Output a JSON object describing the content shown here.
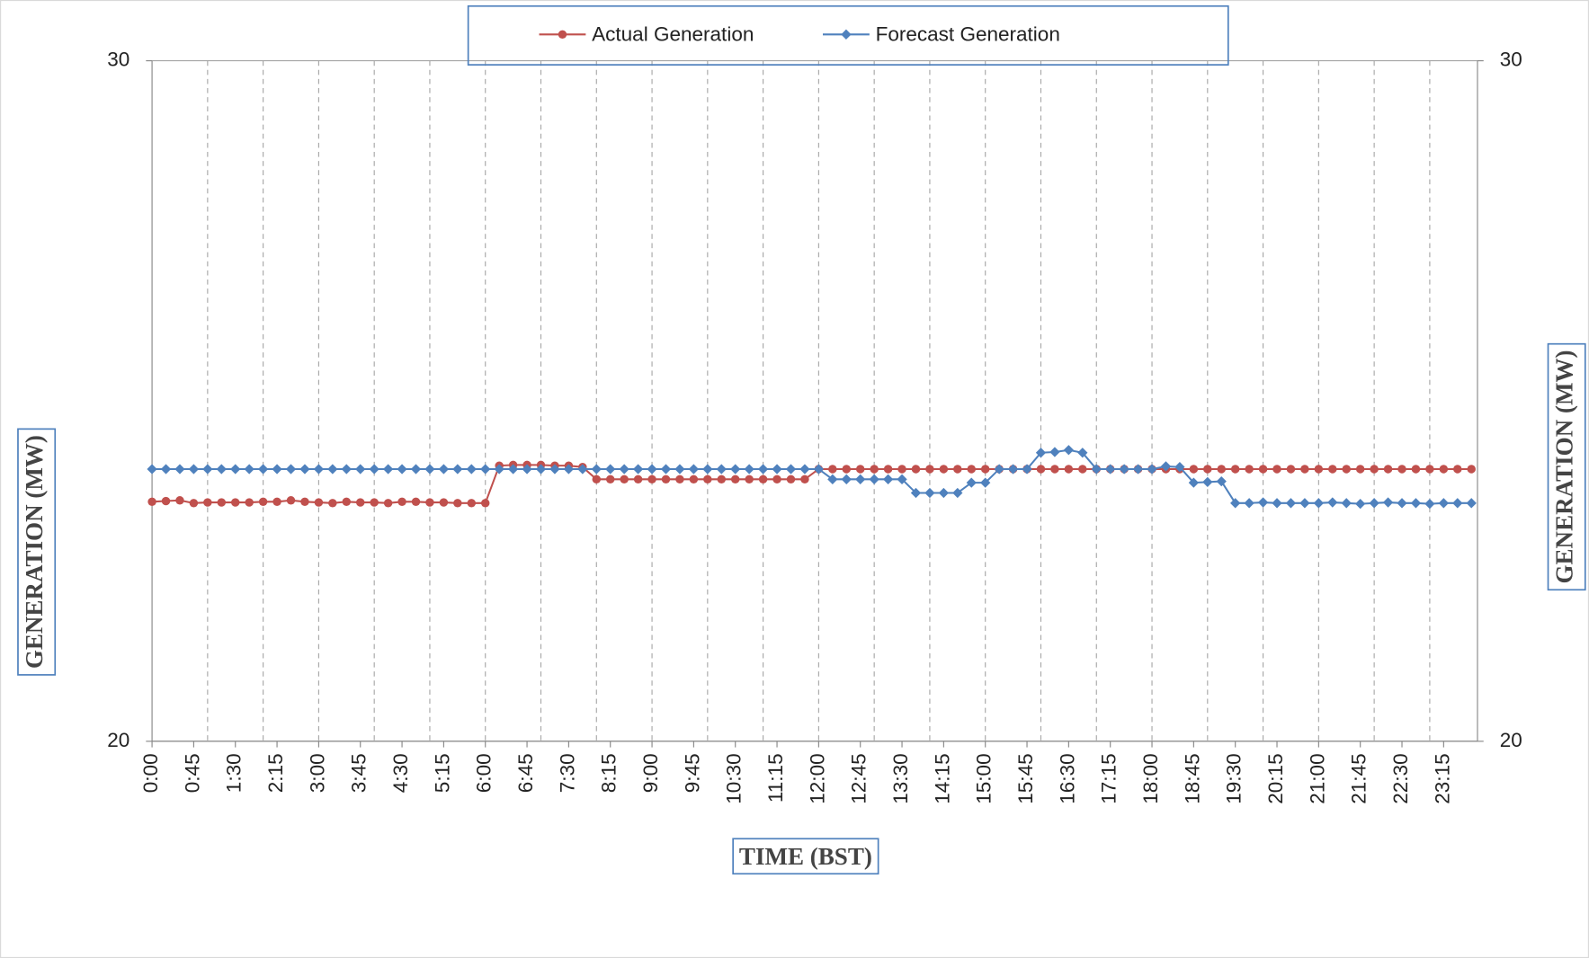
{
  "chart_data": {
    "type": "line",
    "x_label": "TIME (BST)",
    "y_label": "GENERATION (MW)",
    "y2_label": "GENERATION (MW)",
    "categories": [
      "0:00",
      null,
      null,
      "0:45",
      null,
      null,
      "1:30",
      null,
      null,
      "2:15",
      null,
      null,
      "3:00",
      null,
      null,
      "3:45",
      null,
      null,
      "4:30",
      null,
      null,
      "5:15",
      null,
      null,
      "6:00",
      null,
      null,
      "6:45",
      null,
      null,
      "7:30",
      null,
      null,
      "8:15",
      null,
      null,
      "9:00",
      null,
      null,
      "9:45",
      null,
      null,
      "10:30",
      null,
      null,
      "11:15",
      null,
      null,
      "12:00",
      null,
      null,
      "12:45",
      null,
      null,
      "13:30",
      null,
      null,
      "14:15",
      null,
      null,
      "15:00",
      null,
      null,
      "15:45",
      null,
      null,
      "16:30",
      null,
      null,
      "17:15",
      null,
      null,
      "18:00",
      null,
      null,
      "18:45",
      null,
      null,
      "19:30",
      null,
      null,
      "20:15",
      null,
      null,
      "21:00",
      null,
      null,
      "21:45",
      null,
      null,
      "22:30",
      null,
      null,
      "23:15",
      null,
      null
    ],
    "series": [
      {
        "name": "Actual Generation",
        "color": "#c0504d",
        "marker": "circle",
        "values": [
          23.52,
          23.53,
          23.54,
          23.5,
          23.51,
          23.51,
          23.51,
          23.51,
          23.52,
          23.52,
          23.54,
          23.52,
          23.51,
          23.5,
          23.52,
          23.51,
          23.51,
          23.5,
          23.52,
          23.52,
          23.51,
          23.51,
          23.5,
          23.5,
          23.5,
          24.05,
          24.06,
          24.06,
          24.06,
          24.05,
          24.05,
          24.03,
          23.85,
          23.85,
          23.85,
          23.85,
          23.85,
          23.85,
          23.85,
          23.85,
          23.85,
          23.85,
          23.85,
          23.85,
          23.85,
          23.85,
          23.85,
          23.85,
          24.0,
          24.0,
          24.0,
          24.0,
          24.0,
          24.0,
          24.0,
          24.0,
          24.0,
          24.0,
          24.0,
          24.0,
          24.0,
          24.0,
          24.0,
          24.0,
          24.0,
          24.0,
          24.0,
          24.0,
          24.0,
          24.0,
          24.0,
          24.0,
          24.0,
          24.0,
          24.0,
          24.0,
          24.0,
          24.0,
          24.0,
          24.0,
          24.0,
          24.0,
          24.0,
          24.0,
          24.0,
          24.0,
          24.0,
          24.0,
          24.0,
          24.0,
          24.0,
          24.0,
          24.0,
          24.0,
          24.0,
          24.0
        ]
      },
      {
        "name": "Forecast Generation",
        "color": "#4f81bd",
        "marker": "diamond",
        "values": [
          24.0,
          24.0,
          24.0,
          24.0,
          24.0,
          24.0,
          24.0,
          24.0,
          24.0,
          24.0,
          24.0,
          24.0,
          24.0,
          24.0,
          24.0,
          24.0,
          24.0,
          24.0,
          24.0,
          24.0,
          24.0,
          24.0,
          24.0,
          24.0,
          24.0,
          24.0,
          24.0,
          24.0,
          24.0,
          24.0,
          24.0,
          24.0,
          24.0,
          24.0,
          24.0,
          24.0,
          24.0,
          24.0,
          24.0,
          24.0,
          24.0,
          24.0,
          24.0,
          24.0,
          24.0,
          24.0,
          24.0,
          24.0,
          24.0,
          23.85,
          23.85,
          23.85,
          23.85,
          23.85,
          23.85,
          23.65,
          23.65,
          23.65,
          23.65,
          23.8,
          23.8,
          24.0,
          24.0,
          24.0,
          24.24,
          24.25,
          24.28,
          24.24,
          24.0,
          24.0,
          24.0,
          24.0,
          24.0,
          24.04,
          24.03,
          23.8,
          23.81,
          23.82,
          23.5,
          23.5,
          23.51,
          23.5,
          23.5,
          23.5,
          23.5,
          23.51,
          23.5,
          23.49,
          23.5,
          23.51,
          23.5,
          23.5,
          23.49,
          23.5,
          23.5,
          23.5
        ]
      }
    ],
    "ylim": [
      20,
      30
    ],
    "yticks": [
      20,
      30
    ],
    "y2lim": [
      20,
      30
    ],
    "y2ticks": [
      20,
      30
    ],
    "grid": true,
    "legend": "top"
  }
}
